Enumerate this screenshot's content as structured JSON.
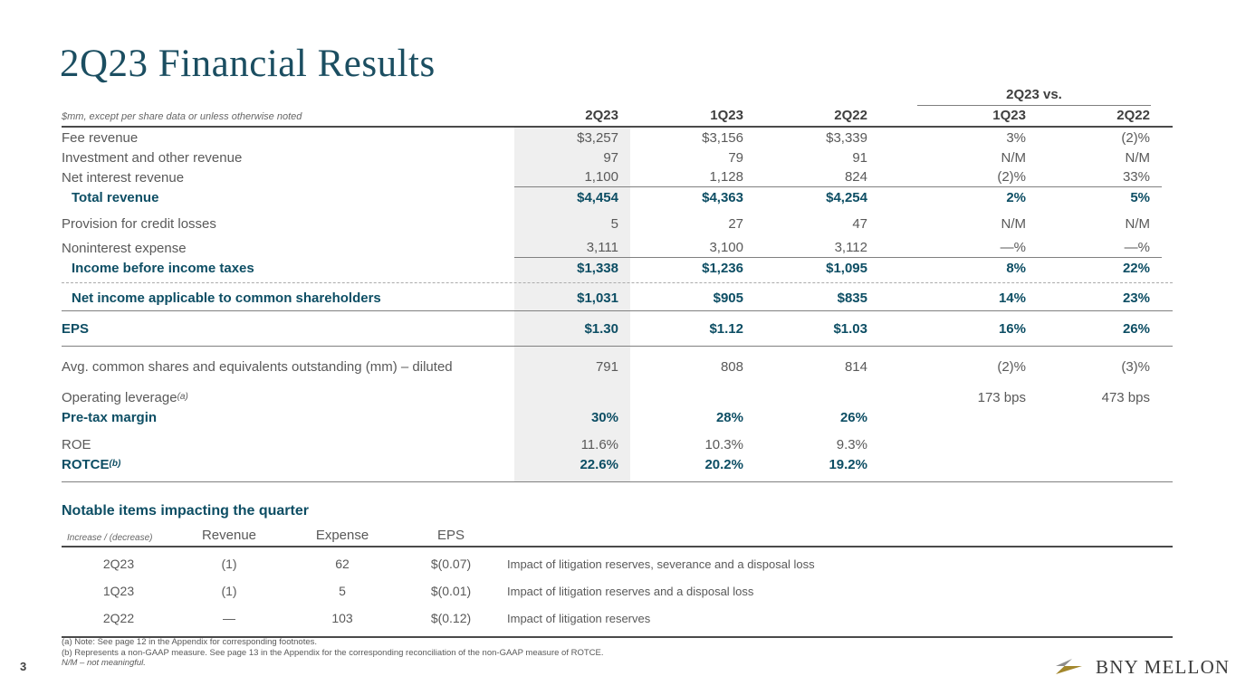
{
  "slide": {
    "title": "2Q23 Financial Results",
    "page_number": "3",
    "accent_color": "#0d4e64",
    "title_color": "#1b4e61",
    "shade_color": "#efefef"
  },
  "main_table": {
    "caption": "$mm, except per share data or unless otherwise noted",
    "vs_label": "2Q23 vs.",
    "columns": [
      "2Q23",
      "1Q23",
      "2Q22",
      "1Q23",
      "2Q22"
    ],
    "rows": [
      {
        "label": "Fee revenue",
        "values": [
          "$3,257",
          "$3,156",
          "$3,339",
          "3%",
          "(2)%"
        ]
      },
      {
        "label": "Investment and other revenue",
        "values": [
          "97",
          "79",
          "91",
          "N/M",
          "N/M"
        ]
      },
      {
        "label": "Net interest revenue",
        "sumline": true,
        "values": [
          "1,100",
          "1,128",
          "824",
          "(2)%",
          "33%"
        ]
      },
      {
        "label": "Total revenue",
        "emph": true,
        "indent": true,
        "values": [
          "$4,454",
          "$4,363",
          "$4,254",
          "2%",
          "5%"
        ]
      },
      {
        "gap": 7
      },
      {
        "label": "Provision for credit losses",
        "values": [
          "5",
          "27",
          "47",
          "N/M",
          "N/M"
        ]
      },
      {
        "gap": 5
      },
      {
        "label": "Noninterest expense",
        "sumline": true,
        "values": [
          "3,111",
          "3,100",
          "3,112",
          "—%",
          "—%"
        ]
      },
      {
        "label": "Income before income taxes",
        "emph": true,
        "indent": true,
        "values": [
          "$1,338",
          "$1,236",
          "$1,095",
          "8%",
          "22%"
        ]
      },
      {
        "divider": "dashed"
      },
      {
        "label": "Net income applicable to common shareholders",
        "emph": true,
        "indent": true,
        "values": [
          "$1,031",
          "$905",
          "$835",
          "14%",
          "23%"
        ]
      },
      {
        "divider": "solid"
      },
      {
        "gap": 5
      },
      {
        "label": "EPS",
        "emph": true,
        "values": [
          "$1.30",
          "$1.12",
          "$1.03",
          "16%",
          "26%"
        ]
      },
      {
        "gap": 5
      },
      {
        "divider": "solid"
      },
      {
        "gap": 8
      },
      {
        "label": "Avg. common shares and equivalents outstanding (mm) – diluted",
        "values": [
          "791",
          "808",
          "814",
          "(2)%",
          "(3)%"
        ]
      },
      {
        "gap": 12
      },
      {
        "label": "Operating leverage",
        "sup": "(a)",
        "values": [
          "",
          "",
          "",
          "173 bps",
          "473 bps"
        ]
      },
      {
        "label": "Pre-tax margin",
        "emph": true,
        "values": [
          "30%",
          "28%",
          "26%",
          "",
          ""
        ]
      },
      {
        "gap": 8
      },
      {
        "label": "ROE",
        "values": [
          "11.6%",
          "10.3%",
          "9.3%",
          "",
          ""
        ]
      },
      {
        "label": "ROTCE",
        "sup": "(b)",
        "emph": true,
        "values": [
          "22.6%",
          "20.2%",
          "19.2%",
          "",
          ""
        ]
      },
      {
        "gap": 5
      },
      {
        "divider": "solid"
      }
    ]
  },
  "notable": {
    "heading": "Notable items impacting the quarter",
    "col_caption": "Increase / (decrease)",
    "columns": [
      "Revenue",
      "Expense",
      "EPS"
    ],
    "rows": [
      {
        "quarter": "2Q23",
        "revenue": "(1)",
        "expense": "62",
        "eps": "$(0.07)",
        "description": "Impact of litigation reserves, severance and a disposal loss"
      },
      {
        "quarter": "1Q23",
        "revenue": "(1)",
        "expense": "5",
        "eps": "$(0.01)",
        "description": "Impact of litigation reserves and a disposal loss"
      },
      {
        "quarter": "2Q22",
        "revenue": "—",
        "expense": "103",
        "eps": "$(0.12)",
        "description": "Impact of litigation reserves"
      }
    ]
  },
  "footnotes": [
    {
      "text": "(a) Note: See page 12 in the Appendix for corresponding footnotes.",
      "italic": false
    },
    {
      "text": "(b) Represents a non-GAAP measure. See page 13 in the Appendix for the corresponding reconciliation of the non-GAAP measure of ROTCE.",
      "italic": false
    },
    {
      "text": "N/M – not meaningful.",
      "italic": true
    }
  ],
  "logo": {
    "text": "BNY MELLON",
    "gray": "#8e8e8e",
    "gold": "#a3872c"
  }
}
